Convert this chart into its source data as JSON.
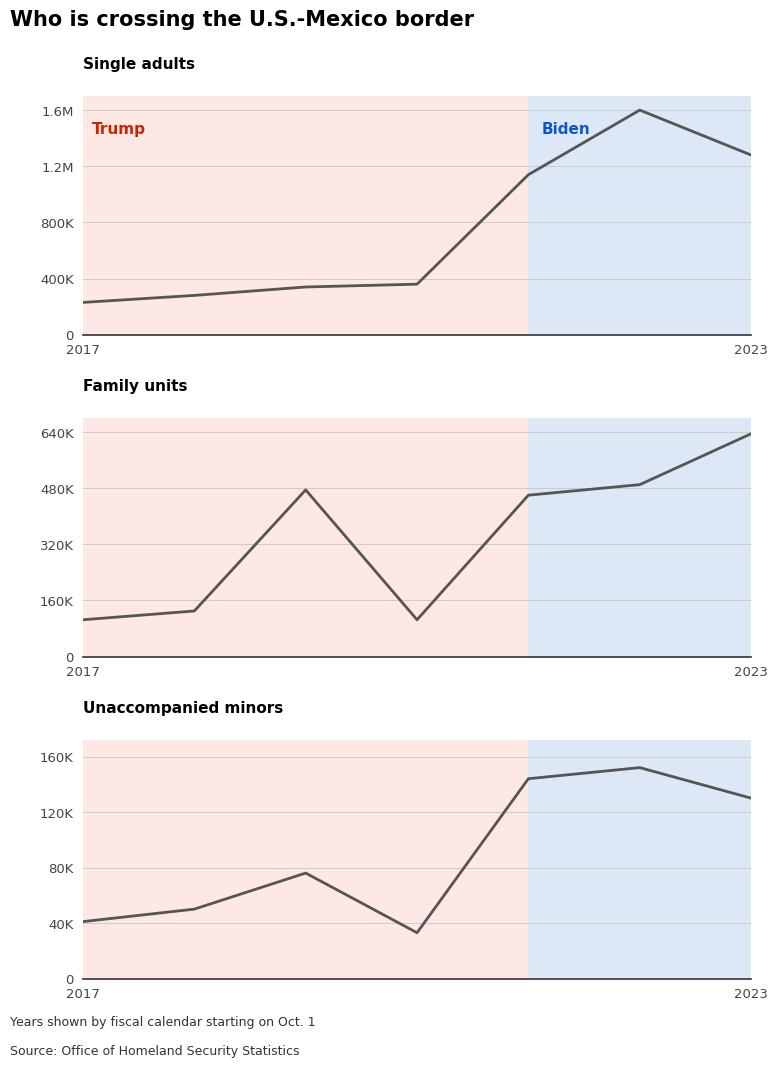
{
  "title": "Who is crossing the U.S.-Mexico border",
  "charts": [
    {
      "subtitle": "Single adults",
      "years": [
        2017,
        2018,
        2019,
        2020,
        2021,
        2022,
        2023
      ],
      "values": [
        230000,
        280000,
        340000,
        360000,
        1140000,
        1600000,
        1280000
      ],
      "yticks": [
        0,
        400000,
        800000,
        1200000,
        1600000
      ],
      "yticklabels": [
        "0",
        "400K",
        "800K",
        "1.2M",
        "1.6M"
      ],
      "ylim": [
        0,
        1700000
      ]
    },
    {
      "subtitle": "Family units",
      "years": [
        2017,
        2018,
        2019,
        2020,
        2021,
        2022,
        2023
      ],
      "values": [
        105000,
        130000,
        475000,
        105000,
        460000,
        490000,
        635000
      ],
      "yticks": [
        0,
        160000,
        320000,
        480000,
        640000
      ],
      "yticklabels": [
        "0",
        "160K",
        "320K",
        "480K",
        "640K"
      ],
      "ylim": [
        0,
        680000
      ]
    },
    {
      "subtitle": "Unaccompanied minors",
      "years": [
        2017,
        2018,
        2019,
        2020,
        2021,
        2022,
        2023
      ],
      "values": [
        41000,
        50000,
        76000,
        33000,
        144000,
        152000,
        130000
      ],
      "yticks": [
        0,
        40000,
        80000,
        120000,
        160000
      ],
      "yticklabels": [
        "0",
        "40K",
        "80K",
        "120K",
        "160K"
      ],
      "ylim": [
        0,
        172000
      ]
    }
  ],
  "trump_end_year": 2021,
  "biden_start_year": 2021,
  "trump_color": "#cc2200",
  "biden_color": "#1155cc",
  "trump_bg": "#fde8e4",
  "biden_bg": "#dce8f5",
  "line_color": "#555555",
  "line_width": 2.0,
  "footnote1": "Years shown by fiscal calendar starting on Oct. 1",
  "footnote2": "Source: Office of Homeland Security Statistics",
  "xlim": [
    2017,
    2023
  ]
}
